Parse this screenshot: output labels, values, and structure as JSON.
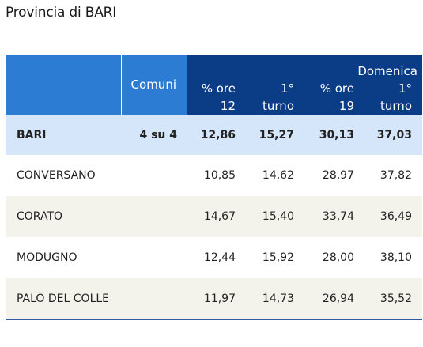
{
  "title": "Provincia di BARI",
  "header": {
    "comuni": "Comuni",
    "group": "Domenica",
    "cols": [
      {
        "line1": "% ore",
        "line2": "12"
      },
      {
        "line1": "1°",
        "line2": "turno"
      },
      {
        "line1": "% ore",
        "line2": "19"
      },
      {
        "line1": "1°",
        "line2": "turno"
      }
    ]
  },
  "rows": [
    {
      "name": "BARI",
      "comuni": "4 su 4",
      "v": [
        "12,86",
        "15,27",
        "30,13",
        "37,03"
      ]
    },
    {
      "name": "CONVERSANO",
      "comuni": "",
      "v": [
        "10,85",
        "14,62",
        "28,97",
        "37,82"
      ]
    },
    {
      "name": "CORATO",
      "comuni": "",
      "v": [
        "14,67",
        "15,40",
        "33,74",
        "36,49"
      ]
    },
    {
      "name": "MODUGNO",
      "comuni": "",
      "v": [
        "12,44",
        "15,92",
        "28,00",
        "38,10"
      ]
    },
    {
      "name": "PALO DEL COLLE",
      "comuni": "",
      "v": [
        "11,97",
        "14,73",
        "26,94",
        "35,52"
      ]
    }
  ],
  "colors": {
    "header_light": "#2c7cd3",
    "header_dark": "#0b3d87",
    "total_row": "#d5e6fb",
    "alt_row": "#f3f3ec"
  }
}
